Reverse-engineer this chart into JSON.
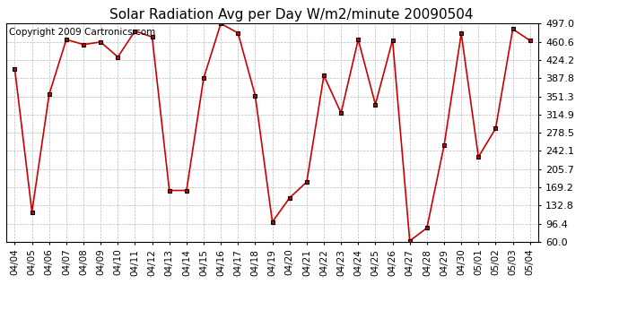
{
  "title": "Solar Radiation Avg per Day W/m2/minute 20090504",
  "copyright": "Copyright 2009 Cartronics.com",
  "dates": [
    "04/04",
    "04/05",
    "04/06",
    "04/07",
    "04/08",
    "04/09",
    "04/10",
    "04/11",
    "04/12",
    "04/13",
    "04/14",
    "04/15",
    "04/16",
    "04/17",
    "04/18",
    "04/19",
    "04/20",
    "04/21",
    "04/22",
    "04/23",
    "04/24",
    "04/25",
    "04/26",
    "04/27",
    "04/28",
    "04/29",
    "04/30",
    "05/01",
    "05/02",
    "05/03",
    "05/04"
  ],
  "values": [
    406,
    120,
    355,
    465,
    455,
    460,
    430,
    482,
    470,
    163,
    163,
    388,
    497,
    478,
    353,
    100,
    148,
    180,
    393,
    318,
    465,
    335,
    464,
    62,
    88,
    253,
    477,
    230,
    287,
    486,
    463
  ],
  "ymin": 60.0,
  "ymax": 497.0,
  "yticks": [
    60.0,
    96.4,
    132.8,
    169.2,
    205.7,
    242.1,
    278.5,
    314.9,
    351.3,
    387.8,
    424.2,
    460.6,
    497.0
  ],
  "line_color": "#cc0000",
  "marker_color": "#000000",
  "background_color": "#ffffff",
  "grid_color": "#bbbbbb",
  "title_fontsize": 11,
  "copyright_fontsize": 7.5,
  "tick_fontsize": 7.5,
  "ytick_fontsize": 8
}
